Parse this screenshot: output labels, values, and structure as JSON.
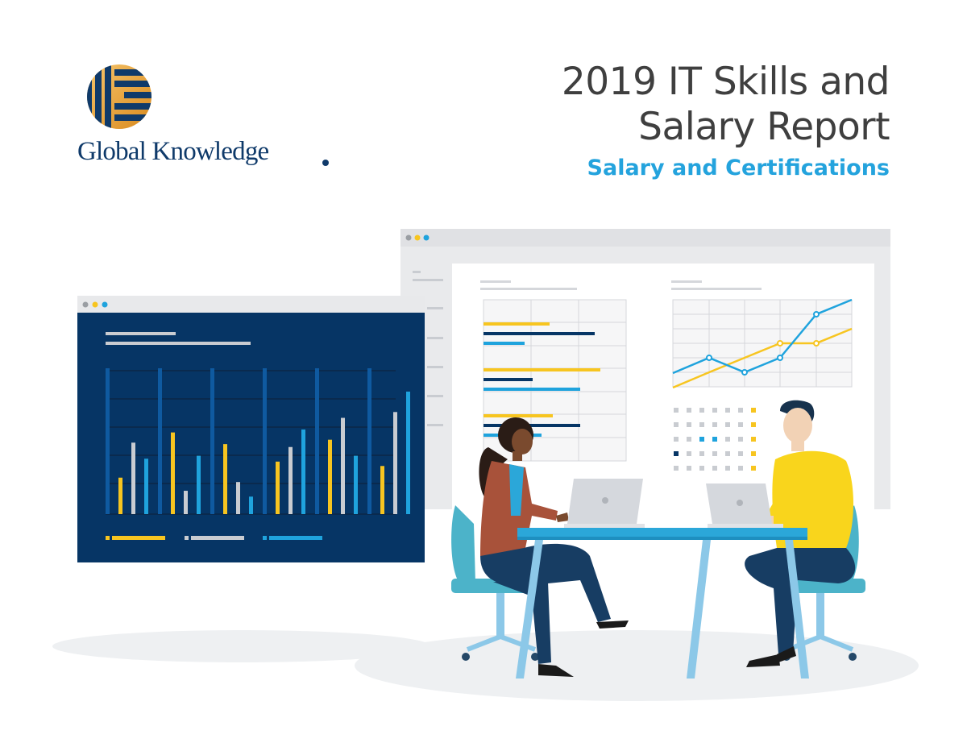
{
  "brand": {
    "name": "Global Knowledge",
    "logo_icon": "global-knowledge-globe-icon",
    "colors": {
      "navy": "#0f3a6a",
      "gold": "#f0a830"
    }
  },
  "report": {
    "title_line1": "2019 IT Skills and",
    "title_line2": "Salary Report",
    "subtitle": "Salary and Certifications"
  },
  "illustration": {
    "palette": {
      "navy": "#063565",
      "yellow": "#f7c520",
      "light_gray": "#c9ccd1",
      "cyan": "#1fa3dd",
      "background_gray": "#e9eaec"
    }
  }
}
